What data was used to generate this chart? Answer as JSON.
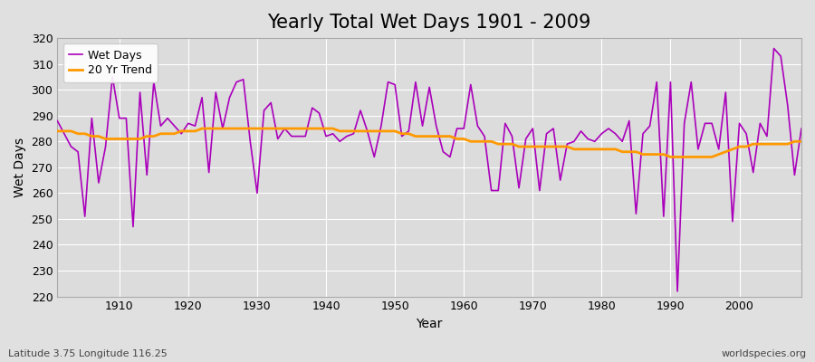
{
  "title": "Yearly Total Wet Days 1901 - 2009",
  "xlabel": "Year",
  "ylabel": "Wet Days",
  "subtitle": "Latitude 3.75 Longitude 116.25",
  "watermark": "worldspecies.org",
  "years": [
    1901,
    1902,
    1903,
    1904,
    1905,
    1906,
    1907,
    1908,
    1909,
    1910,
    1911,
    1912,
    1913,
    1914,
    1915,
    1916,
    1917,
    1918,
    1919,
    1920,
    1921,
    1922,
    1923,
    1924,
    1925,
    1926,
    1927,
    1928,
    1929,
    1930,
    1931,
    1932,
    1933,
    1934,
    1935,
    1936,
    1937,
    1938,
    1939,
    1940,
    1941,
    1942,
    1943,
    1944,
    1945,
    1946,
    1947,
    1948,
    1949,
    1950,
    1951,
    1952,
    1953,
    1954,
    1955,
    1956,
    1957,
    1958,
    1959,
    1960,
    1961,
    1962,
    1963,
    1964,
    1965,
    1966,
    1967,
    1968,
    1969,
    1970,
    1971,
    1972,
    1973,
    1974,
    1975,
    1976,
    1977,
    1978,
    1979,
    1980,
    1981,
    1982,
    1983,
    1984,
    1985,
    1986,
    1987,
    1988,
    1989,
    1990,
    1991,
    1992,
    1993,
    1994,
    1995,
    1996,
    1997,
    1998,
    1999,
    2000,
    2001,
    2002,
    2003,
    2004,
    2005,
    2006,
    2007,
    2008,
    2009
  ],
  "wet_days": [
    288,
    283,
    278,
    276,
    251,
    289,
    264,
    278,
    305,
    289,
    289,
    247,
    299,
    267,
    303,
    286,
    289,
    286,
    283,
    287,
    286,
    297,
    268,
    299,
    285,
    297,
    303,
    304,
    280,
    260,
    292,
    295,
    281,
    285,
    282,
    282,
    282,
    293,
    291,
    282,
    283,
    280,
    282,
    283,
    292,
    284,
    274,
    286,
    303,
    302,
    282,
    284,
    303,
    286,
    301,
    286,
    276,
    274,
    285,
    285,
    302,
    286,
    282,
    261,
    261,
    287,
    282,
    262,
    281,
    285,
    261,
    283,
    285,
    265,
    279,
    280,
    284,
    281,
    280,
    283,
    285,
    283,
    280,
    288,
    252,
    283,
    286,
    303,
    251,
    303,
    222,
    287,
    303,
    277,
    287,
    287,
    277,
    299,
    249,
    287,
    283,
    268,
    287,
    282,
    316,
    313,
    294,
    267,
    285
  ],
  "trend": [
    284,
    284,
    284,
    283,
    283,
    282,
    282,
    281,
    281,
    281,
    281,
    281,
    281,
    282,
    282,
    283,
    283,
    283,
    284,
    284,
    284,
    285,
    285,
    285,
    285,
    285,
    285,
    285,
    285,
    285,
    285,
    285,
    285,
    285,
    285,
    285,
    285,
    285,
    285,
    285,
    285,
    284,
    284,
    284,
    284,
    284,
    284,
    284,
    284,
    284,
    283,
    283,
    282,
    282,
    282,
    282,
    282,
    282,
    281,
    281,
    280,
    280,
    280,
    280,
    279,
    279,
    279,
    278,
    278,
    278,
    278,
    278,
    278,
    278,
    278,
    277,
    277,
    277,
    277,
    277,
    277,
    277,
    276,
    276,
    276,
    275,
    275,
    275,
    275,
    274,
    274,
    274,
    274,
    274,
    274,
    274,
    275,
    276,
    277,
    278,
    278,
    279,
    279,
    279,
    279,
    279,
    279,
    280,
    280
  ],
  "wet_days_color": "#AA00BB",
  "trend_color": "#FF9900",
  "bg_color": "#E0E0E0",
  "plot_bg_color": "#DCDCDC",
  "grid_color": "#FFFFFF",
  "ylim": [
    220,
    320
  ],
  "yticks": [
    220,
    230,
    240,
    250,
    260,
    270,
    280,
    290,
    300,
    310,
    320
  ],
  "xlim_start": 1901,
  "xlim_end": 2009,
  "title_fontsize": 15,
  "label_fontsize": 10,
  "tick_fontsize": 9,
  "legend_fontsize": 9
}
